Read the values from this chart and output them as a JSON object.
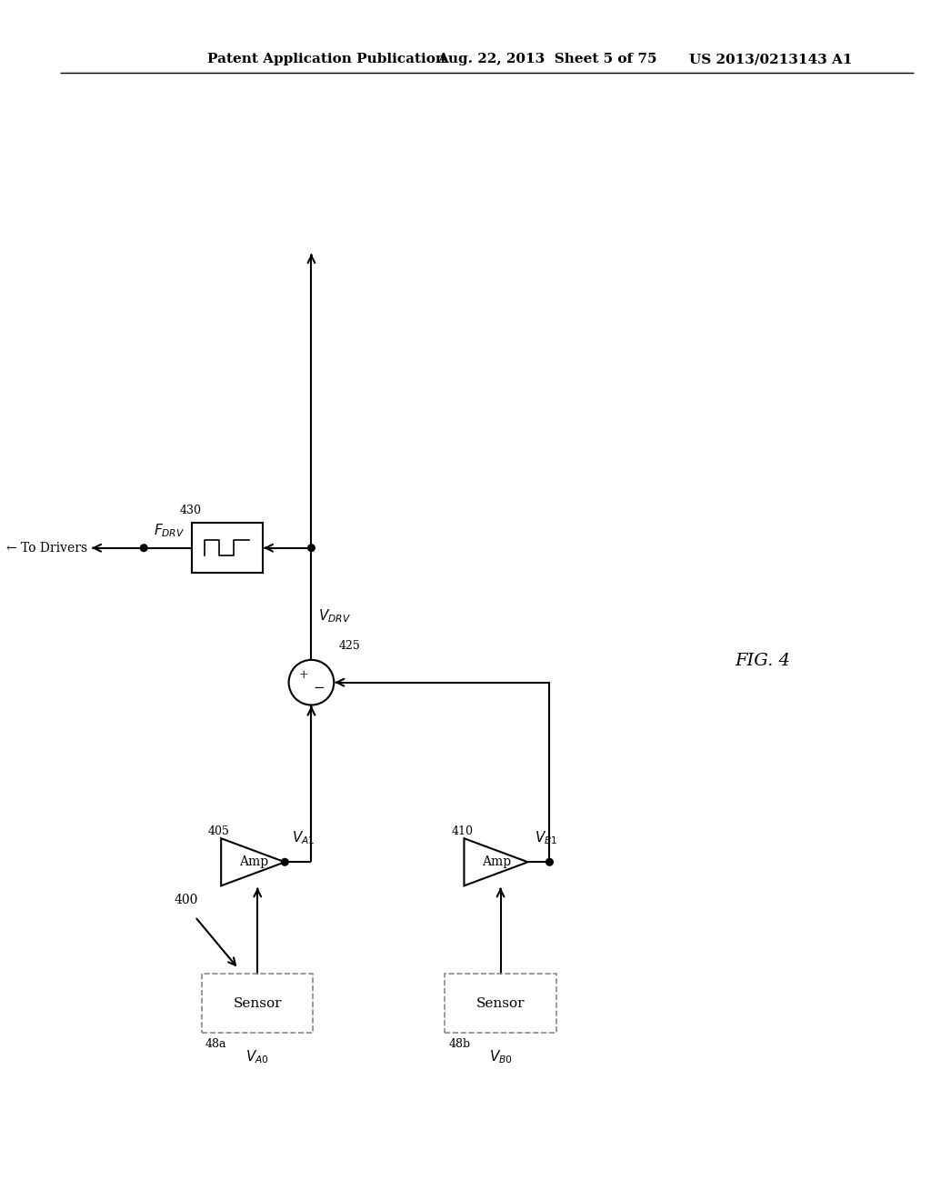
{
  "title_left": "Patent Application Publication",
  "title_mid": "Aug. 22, 2013  Sheet 5 of 75",
  "title_right": "US 2013/0213143 A1",
  "fig_label": "FIG. 4",
  "background": "#ffffff",
  "lc": "#000000",
  "gray": "#888888"
}
